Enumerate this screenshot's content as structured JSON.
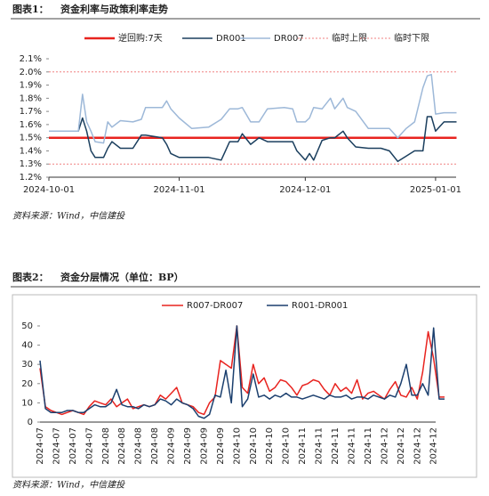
{
  "chart_data": [
    {
      "type": "line",
      "label": "图表1：",
      "title": "资金利率与政策利率走势",
      "source": "资料来源：Wind，中信建投",
      "x": [
        "2024-10-01",
        "2024-10-08",
        "2024-10-09",
        "2024-10-10",
        "2024-10-11",
        "2024-10-12",
        "2024-10-14",
        "2024-10-15",
        "2024-10-16",
        "2024-10-18",
        "2024-10-21",
        "2024-10-23",
        "2024-10-24",
        "2024-10-28",
        "2024-10-29",
        "2024-10-30",
        "2024-11-01",
        "2024-11-04",
        "2024-11-08",
        "2024-11-11",
        "2024-11-13",
        "2024-11-15",
        "2024-11-16",
        "2024-11-18",
        "2024-11-20",
        "2024-11-22",
        "2024-11-26",
        "2024-11-28",
        "2024-11-29",
        "2024-12-01",
        "2024-12-02",
        "2024-12-03",
        "2024-12-05",
        "2024-12-07",
        "2024-12-08",
        "2024-12-10",
        "2024-12-11",
        "2024-12-13",
        "2024-12-16",
        "2024-12-19",
        "2024-12-21",
        "2024-12-23",
        "2024-12-25",
        "2024-12-27",
        "2024-12-29",
        "2024-12-30",
        "2024-12-31",
        "2025-01-01",
        "2025-01-03",
        "2025-01-06"
      ],
      "series": [
        {
          "name": "逆回购:7天",
          "color": "#e8231f",
          "linestyle": "thick",
          "values": [
            1.5,
            1.5,
            1.5,
            1.5,
            1.5,
            1.5,
            1.5,
            1.5,
            1.5,
            1.5,
            1.5,
            1.5,
            1.5,
            1.5,
            1.5,
            1.5,
            1.5,
            1.5,
            1.5,
            1.5,
            1.5,
            1.5,
            1.5,
            1.5,
            1.5,
            1.5,
            1.5,
            1.5,
            1.5,
            1.5,
            1.5,
            1.5,
            1.5,
            1.5,
            1.5,
            1.5,
            1.5,
            1.5,
            1.5,
            1.5,
            1.5,
            1.5,
            1.5,
            1.5,
            1.5,
            1.5,
            1.5,
            1.5,
            1.5,
            1.5
          ]
        },
        {
          "name": "DR001",
          "color": "#1b3f5e",
          "linestyle": "solid",
          "values": [
            1.55,
            1.55,
            1.65,
            1.55,
            1.4,
            1.35,
            1.35,
            1.42,
            1.47,
            1.42,
            1.42,
            1.52,
            1.52,
            1.5,
            1.45,
            1.38,
            1.35,
            1.35,
            1.35,
            1.33,
            1.47,
            1.47,
            1.53,
            1.45,
            1.5,
            1.47,
            1.47,
            1.47,
            1.4,
            1.33,
            1.38,
            1.33,
            1.48,
            1.5,
            1.5,
            1.55,
            1.5,
            1.43,
            1.42,
            1.42,
            1.4,
            1.32,
            1.36,
            1.4,
            1.4,
            1.66,
            1.66,
            1.55,
            1.62,
            1.62
          ]
        },
        {
          "name": "DR007",
          "color": "#9db8d8",
          "linestyle": "solid",
          "values": [
            1.55,
            1.55,
            1.83,
            1.62,
            1.55,
            1.47,
            1.46,
            1.62,
            1.58,
            1.63,
            1.62,
            1.64,
            1.73,
            1.73,
            1.78,
            1.72,
            1.65,
            1.57,
            1.58,
            1.64,
            1.72,
            1.72,
            1.73,
            1.62,
            1.62,
            1.72,
            1.73,
            1.72,
            1.62,
            1.62,
            1.65,
            1.73,
            1.72,
            1.8,
            1.72,
            1.8,
            1.73,
            1.7,
            1.57,
            1.57,
            1.57,
            1.5,
            1.57,
            1.62,
            1.88,
            1.97,
            1.98,
            1.68,
            1.69,
            1.69
          ]
        },
        {
          "name": "临时上限",
          "color": "#f08080",
          "linestyle": "dotted",
          "values": [
            2.0,
            2.0,
            2.0,
            2.0,
            2.0,
            2.0,
            2.0,
            2.0,
            2.0,
            2.0,
            2.0,
            2.0,
            2.0,
            2.0,
            2.0,
            2.0,
            2.0,
            2.0,
            2.0,
            2.0,
            2.0,
            2.0,
            2.0,
            2.0,
            2.0,
            2.0,
            2.0,
            2.0,
            2.0,
            2.0,
            2.0,
            2.0,
            2.0,
            2.0,
            2.0,
            2.0,
            2.0,
            2.0,
            2.0,
            2.0,
            2.0,
            2.0,
            2.0,
            2.0,
            2.0,
            2.0,
            2.0,
            2.0,
            2.0,
            2.0
          ]
        },
        {
          "name": "临时下限",
          "color": "#f08080",
          "linestyle": "dotted",
          "values": [
            1.3,
            1.3,
            1.3,
            1.3,
            1.3,
            1.3,
            1.3,
            1.3,
            1.3,
            1.3,
            1.3,
            1.3,
            1.3,
            1.3,
            1.3,
            1.3,
            1.3,
            1.3,
            1.3,
            1.3,
            1.3,
            1.3,
            1.3,
            1.3,
            1.3,
            1.3,
            1.3,
            1.3,
            1.3,
            1.3,
            1.3,
            1.3,
            1.3,
            1.3,
            1.3,
            1.3,
            1.3,
            1.3,
            1.3,
            1.3,
            1.3,
            1.3,
            1.3,
            1.3,
            1.3,
            1.3,
            1.3,
            1.3,
            1.3,
            1.3
          ]
        }
      ],
      "xlim": [
        "2024-10-01",
        "2025-01-08"
      ],
      "xticks": [
        "2024-10-01",
        "2024-11-01",
        "2024-12-01",
        "2025-01-01"
      ],
      "ylim": [
        1.2,
        2.1
      ],
      "yticks": [
        {
          "value": 1.2,
          "label": "1.2%"
        },
        {
          "value": 1.3,
          "label": "1.3%"
        },
        {
          "value": 1.4,
          "label": "1.4%"
        },
        {
          "value": 1.5,
          "label": "1.5%"
        },
        {
          "value": 1.6,
          "label": "1.6%"
        },
        {
          "value": 1.7,
          "label": "1.7%"
        },
        {
          "value": 1.8,
          "label": "1.8%"
        },
        {
          "value": 1.9,
          "label": "1.9%"
        },
        {
          "value": 2.0,
          "label": "2.0%"
        },
        {
          "value": 2.1,
          "label": "2.1%"
        }
      ],
      "grid": false,
      "legend": "top"
    },
    {
      "type": "line",
      "label": "图表2：",
      "title": "资金分层情况（单位：BP）",
      "source": "资料来源：Wind，中信建投",
      "categories": [
        "2024-07",
        null,
        null,
        "2024-07",
        null,
        null,
        "2024-07",
        null,
        null,
        "2024-07",
        null,
        null,
        "2024-08",
        null,
        null,
        "2024-08",
        null,
        null,
        "2024-08",
        null,
        null,
        "2024-08",
        null,
        null,
        "2024-09",
        null,
        null,
        "2024-09",
        null,
        null,
        "2024-09",
        null,
        null,
        "2024-09",
        null,
        null,
        "2024-10",
        null,
        null,
        "2024-10",
        null,
        null,
        "2024-10",
        null,
        null,
        "2024-10",
        null,
        null,
        "2024-11",
        null,
        null,
        "2024-11",
        null,
        null,
        "2024-11",
        null,
        null,
        "2024-11",
        null,
        null,
        "2024-11",
        null,
        null,
        "2024-12",
        null,
        null,
        "2024-12",
        null,
        null,
        "2024-12",
        null,
        null,
        "2024-12",
        null,
        null
      ],
      "series": [
        {
          "name": "R007-DR007",
          "color": "#e8231f",
          "linestyle": "solid",
          "values": [
            28,
            8,
            6,
            5,
            4,
            5,
            6,
            5,
            4,
            8,
            11,
            10,
            9,
            12,
            8,
            10,
            12,
            7,
            8,
            9,
            8,
            9,
            14,
            12,
            15,
            18,
            10,
            9,
            8,
            5,
            4,
            10,
            13,
            32,
            30,
            28,
            50,
            18,
            15,
            30,
            20,
            23,
            16,
            18,
            22,
            21,
            18,
            14,
            19,
            20,
            22,
            21,
            17,
            14,
            20,
            16,
            18,
            15,
            22,
            12,
            15,
            16,
            14,
            12,
            17,
            21,
            14,
            13,
            18,
            12,
            26,
            47,
            33,
            13,
            13
          ]
        },
        {
          "name": "R001-DR001",
          "color": "#1b3f6e",
          "linestyle": "solid",
          "values": [
            32,
            7,
            5,
            5,
            5,
            6,
            6,
            5,
            5,
            7,
            9,
            8,
            8,
            10,
            17,
            9,
            8,
            8,
            7,
            9,
            8,
            9,
            12,
            11,
            9,
            12,
            10,
            9,
            7,
            3,
            2,
            4,
            14,
            13,
            27,
            10,
            50,
            8,
            12,
            25,
            13,
            14,
            12,
            14,
            13,
            15,
            13,
            13,
            12,
            13,
            14,
            13,
            12,
            14,
            13,
            13,
            14,
            12,
            13,
            13,
            12,
            14,
            13,
            12,
            14,
            13,
            20,
            30,
            14,
            14,
            20,
            14,
            49,
            12,
            12
          ]
        }
      ],
      "ylim": [
        0,
        50
      ],
      "yticks": [
        0,
        10,
        20,
        30,
        40,
        50
      ],
      "grid": false,
      "legend": "top"
    }
  ]
}
